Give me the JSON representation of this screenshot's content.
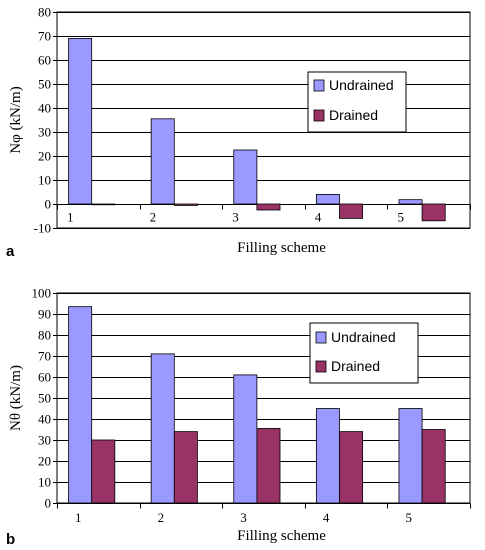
{
  "chart_data": [
    {
      "type": "bar",
      "panel_label": "a",
      "categories": [
        "1",
        "2",
        "3",
        "4",
        "5"
      ],
      "series": [
        {
          "name": "Undrained",
          "values": [
            69,
            35.5,
            22.5,
            4,
            1.8
          ]
        },
        {
          "name": "Drained",
          "values": [
            0,
            -0.6,
            -2.5,
            -6,
            -7
          ]
        }
      ],
      "xlabel": "Filling scheme",
      "ylabel": "Nφ (kN/m)",
      "ylim": [
        -10,
        80
      ],
      "yticks": [
        -10,
        0,
        10,
        20,
        30,
        40,
        50,
        60,
        70,
        80
      ],
      "grid": true,
      "legend": "right",
      "colors": {
        "Undrained": "#9999ff",
        "Drained": "#993366"
      }
    },
    {
      "type": "bar",
      "panel_label": "b",
      "categories": [
        "1",
        "2",
        "3",
        "4",
        "5"
      ],
      "series": [
        {
          "name": "Undrained",
          "values": [
            93.5,
            71,
            61,
            45,
            45
          ]
        },
        {
          "name": "Drained",
          "values": [
            30,
            34,
            35.5,
            34,
            35
          ]
        }
      ],
      "xlabel": "Filling scheme",
      "ylabel": "Nθ (kN/m)",
      "ylim": [
        0,
        100
      ],
      "yticks": [
        0,
        10,
        20,
        30,
        40,
        50,
        60,
        70,
        80,
        90,
        100
      ],
      "grid": true,
      "legend": "top-right",
      "colors": {
        "Undrained": "#9999ff",
        "Drained": "#993366"
      }
    }
  ]
}
